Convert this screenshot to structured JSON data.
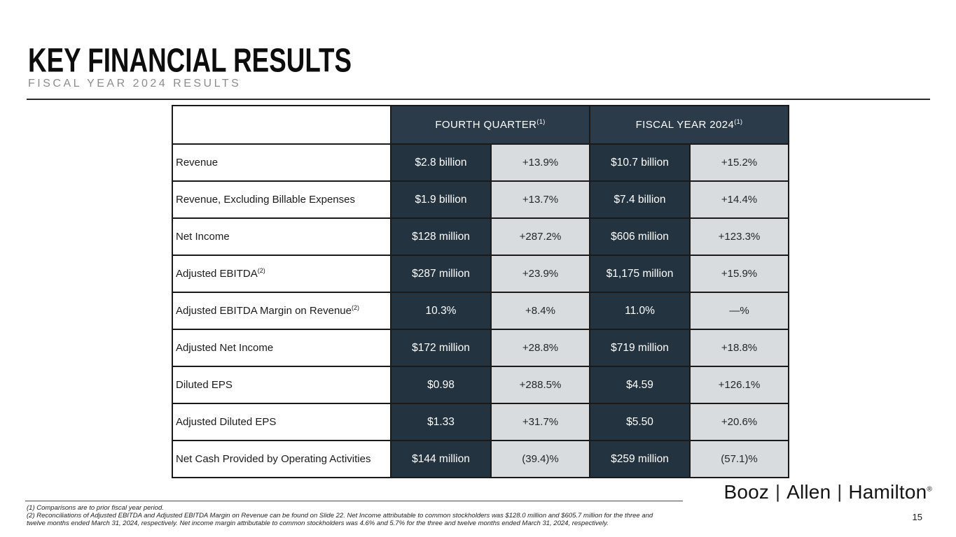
{
  "slide": {
    "title": "KEY FINANCIAL RESULTS",
    "subtitle": "FISCAL YEAR 2024 RESULTS",
    "page_number": "15"
  },
  "colors": {
    "navy_value_cell": "#243340",
    "navy_header_cell": "#2c3b49",
    "gray_change_cell": "#d9dcdf",
    "border": "#1a1a1a"
  },
  "table": {
    "column_groups": [
      {
        "label": "FOURTH QUARTER",
        "sup": "(1)"
      },
      {
        "label": "FISCAL YEAR 2024",
        "sup": "(1)"
      }
    ],
    "rows": [
      {
        "label": "Revenue",
        "label_sup": "",
        "q4_value": "$2.8 billion",
        "q4_change": "+13.9%",
        "fy_value": "$10.7 billion",
        "fy_change": "+15.2%"
      },
      {
        "label": "Revenue, Excluding Billable Expenses",
        "label_sup": "",
        "q4_value": "$1.9 billion",
        "q4_change": "+13.7%",
        "fy_value": "$7.4 billion",
        "fy_change": "+14.4%"
      },
      {
        "label": "Net Income",
        "label_sup": "",
        "q4_value": "$128 million",
        "q4_change": "+287.2%",
        "fy_value": "$606 million",
        "fy_change": "+123.3%"
      },
      {
        "label": "Adjusted EBITDA",
        "label_sup": "(2)",
        "q4_value": "$287 million",
        "q4_change": "+23.9%",
        "fy_value": "$1,175 million",
        "fy_change": "+15.9%"
      },
      {
        "label": "Adjusted EBITDA Margin on Revenue",
        "label_sup": "(2)",
        "q4_value": "10.3%",
        "q4_change": "+8.4%",
        "fy_value": "11.0%",
        "fy_change": "—%"
      },
      {
        "label": "Adjusted Net Income",
        "label_sup": "",
        "q4_value": "$172 million",
        "q4_change": "+28.8%",
        "fy_value": "$719 million",
        "fy_change": "+18.8%"
      },
      {
        "label": "Diluted EPS",
        "label_sup": "",
        "q4_value": "$0.98",
        "q4_change": "+288.5%",
        "fy_value": "$4.59",
        "fy_change": "+126.1%"
      },
      {
        "label": "Adjusted Diluted EPS",
        "label_sup": "",
        "q4_value": "$1.33",
        "q4_change": "+31.7%",
        "fy_value": "$5.50",
        "fy_change": "+20.6%"
      },
      {
        "label": "Net Cash Provided by Operating Activities",
        "label_sup": "",
        "q4_value": "$144 million",
        "q4_change": "(39.4)%",
        "fy_value": "$259 million",
        "fy_change": "(57.1)%"
      }
    ]
  },
  "footnotes": [
    "(1) Comparisons are to prior fiscal year period.",
    "(2) Reconciliations of Adjusted EBITDA and Adjusted EBITDA Margin on Revenue can be found on Slide 22. Net Income attributable to common stockholders was $128.0 million and $605.7 million for the three and twelve months ended March 31, 2024, respectively.  Net income margin attributable to common stockholders was 4.6% and 5.7% for the three and twelve months ended March 31, 2024, respectively."
  ],
  "logo": {
    "part1": "Booz",
    "part2": "Allen",
    "part3": "Hamilton",
    "registered": "®"
  }
}
